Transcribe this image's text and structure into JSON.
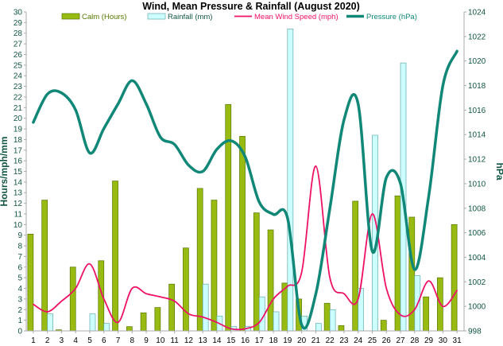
{
  "chart_data": {
    "type": "bar",
    "title": "Wind, Mean Pressure & Rainfall (August 2020)",
    "ylabel_left": "Hours/mph/mm",
    "ylabel_right": "hPa",
    "categories": [
      "1",
      "2",
      "3",
      "4",
      "5",
      "6",
      "7",
      "8",
      "9",
      "10",
      "11",
      "12",
      "13",
      "14",
      "15",
      "16",
      "17",
      "18",
      "19",
      "20",
      "21",
      "22",
      "23",
      "24",
      "25",
      "26",
      "27",
      "28",
      "29",
      "30",
      "31"
    ],
    "ylim_left": [
      0,
      30
    ],
    "ylim_right": [
      998,
      1024
    ],
    "yticks_left": [
      "0",
      "1",
      "2",
      "3",
      "4",
      "5",
      "6",
      "7",
      "8",
      "9",
      "10",
      "11",
      "12",
      "13",
      "14",
      "15",
      "16",
      "17",
      "18",
      "19",
      "20",
      "21",
      "22",
      "23",
      "24",
      "25",
      "26",
      "27",
      "28",
      "29",
      "30"
    ],
    "yticks_right": [
      "998",
      "1000",
      "1002",
      "1004",
      "1006",
      "1008",
      "1010",
      "1012",
      "1014",
      "1016",
      "1018",
      "1020",
      "1022",
      "1024"
    ],
    "legend_position": "top",
    "grid": false,
    "series": [
      {
        "name": "Calm (Hours)",
        "kind": "bar",
        "axis": "left",
        "color": "#99bb11",
        "values": [
          9.1,
          12.3,
          0.1,
          6.0,
          0.0,
          6.6,
          14.1,
          0.4,
          1.7,
          2.2,
          4.4,
          7.8,
          13.4,
          12.3,
          21.3,
          18.3,
          11.1,
          9.5,
          4.5,
          3.0,
          0.0,
          2.6,
          0.5,
          12.2,
          0.0,
          1.0,
          12.7,
          10.7,
          3.2,
          5.0,
          10.0
        ]
      },
      {
        "name": "Rainfall (mm)",
        "kind": "bar",
        "axis": "left",
        "color": "#ccffff",
        "values": [
          0.0,
          1.6,
          0.0,
          0.0,
          1.6,
          0.7,
          0.0,
          0.0,
          0.0,
          0.0,
          0.0,
          0.0,
          4.4,
          1.4,
          0.4,
          0.4,
          3.2,
          1.8,
          28.4,
          1.4,
          0.7,
          2.0,
          0.0,
          4.0,
          18.4,
          0.0,
          25.2,
          5.2,
          0.0,
          0.0,
          0.0
        ]
      },
      {
        "name": "Mean Wind Speed (mph)",
        "kind": "line",
        "axis": "left",
        "color": "#ee1166",
        "values": [
          2.5,
          1.8,
          2.8,
          4.0,
          6.3,
          3.0,
          0.8,
          4.0,
          3.5,
          3.2,
          2.8,
          1.6,
          1.3,
          0.8,
          0.2,
          0.2,
          0.8,
          3.0,
          4.2,
          5.5,
          15.5,
          5.0,
          3.5,
          3.0,
          11.0,
          4.0,
          1.5,
          2.0,
          4.7,
          2.3,
          3.8
        ]
      },
      {
        "name": "Pressure (hPa)",
        "kind": "line",
        "axis": "right",
        "color": "#118877",
        "values": [
          1015,
          1017.3,
          1017.4,
          1016,
          1012.5,
          1014.5,
          1016.5,
          1018.4,
          1016.5,
          1013.8,
          1013.2,
          1011.5,
          1011,
          1012.8,
          1013.5,
          1012.2,
          1008.5,
          1007.5,
          1007.2,
          998.5,
          1001,
          1008,
          1015.2,
          1016.5,
          1004.5,
          1010.5,
          1010,
          1003,
          1009,
          1018,
          1020.8
        ]
      }
    ]
  }
}
